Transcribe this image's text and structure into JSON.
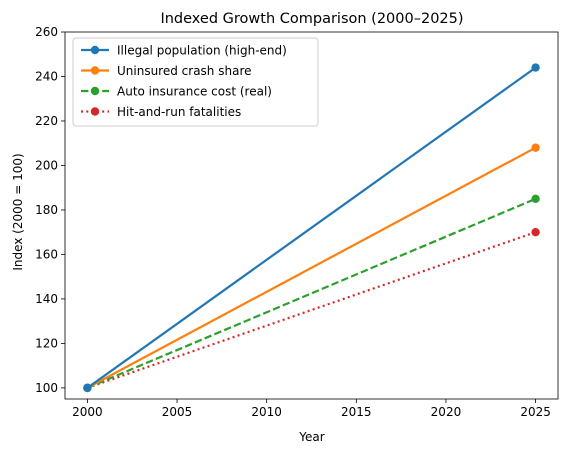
{
  "chart_data": {
    "type": "line",
    "title": "Indexed Growth Comparison (2000–2025)",
    "xlabel": "Year",
    "ylabel": "Index (2000 = 100)",
    "x": [
      2000,
      2025
    ],
    "xlim": [
      1998.75,
      2026.25
    ],
    "ylim": [
      95,
      260
    ],
    "xticks": [
      2000,
      2005,
      2010,
      2015,
      2020,
      2025
    ],
    "yticks": [
      100,
      120,
      140,
      160,
      180,
      200,
      220,
      240,
      260
    ],
    "grid": false,
    "legend_position": "top-left",
    "series": [
      {
        "name": "Illegal population (high-end)",
        "values": [
          100,
          244
        ],
        "color": "#1f77b4",
        "dash": "solid",
        "marker": "circle"
      },
      {
        "name": "Uninsured crash share",
        "values": [
          100,
          208
        ],
        "color": "#ff7f0e",
        "dash": "solid",
        "marker": "circle"
      },
      {
        "name": "Auto insurance cost (real)",
        "values": [
          100,
          185
        ],
        "color": "#2ca02c",
        "dash": "dashed",
        "marker": "circle"
      },
      {
        "name": "Hit-and-run fatalities",
        "values": [
          100,
          170
        ],
        "color": "#d62728",
        "dash": "dotted",
        "marker": "circle"
      }
    ]
  }
}
